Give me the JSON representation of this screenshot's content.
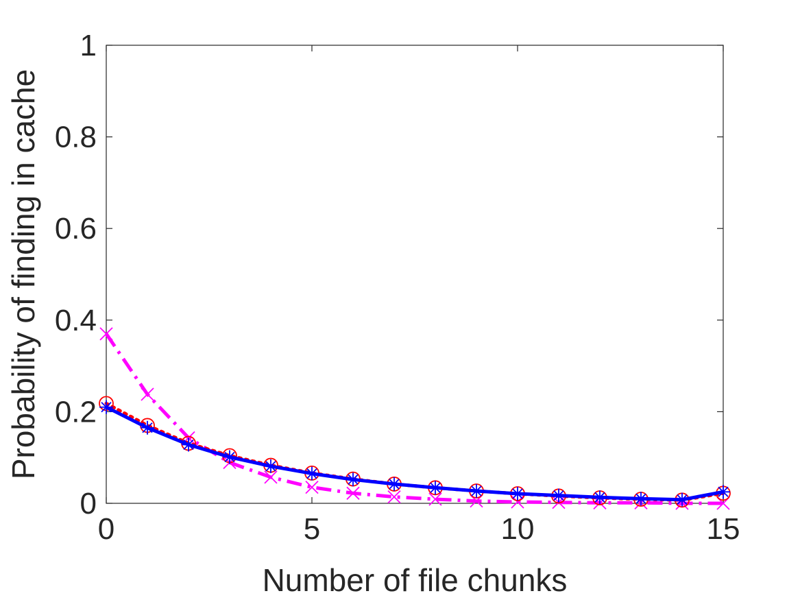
{
  "chart_data": {
    "type": "line",
    "title": "",
    "xlabel": "Number of file chunks",
    "ylabel": "Probability of finding in cache",
    "xlim": [
      0,
      15
    ],
    "ylim": [
      0,
      1
    ],
    "x_ticks": [
      "0",
      "5",
      "10",
      "15"
    ],
    "y_ticks": [
      "0",
      "0.2",
      "0.4",
      "0.6",
      "0.8",
      "1"
    ],
    "x_tick_values": [
      0,
      5,
      10,
      15
    ],
    "y_tick_values": [
      0,
      0.2,
      0.4,
      0.6,
      0.8,
      1
    ],
    "grid": false,
    "legend": "none",
    "x": [
      0,
      1,
      2,
      3,
      4,
      5,
      6,
      7,
      8,
      9,
      10,
      11,
      12,
      13,
      14,
      15
    ],
    "series": [
      {
        "color": "#0000ff",
        "line_style": "solid",
        "marker": "asterisk",
        "values": [
          0.21,
          0.165,
          0.128,
          0.101,
          0.081,
          0.065,
          0.052,
          0.042,
          0.034,
          0.027,
          0.021,
          0.017,
          0.013,
          0.01,
          0.008,
          0.025
        ]
      },
      {
        "color": "#ff0000",
        "line_style": "dotted",
        "marker": "circle",
        "values": [
          0.218,
          0.17,
          0.131,
          0.104,
          0.083,
          0.066,
          0.053,
          0.042,
          0.034,
          0.027,
          0.021,
          0.016,
          0.012,
          0.009,
          0.007,
          0.022
        ]
      },
      {
        "color": "#ff00ff",
        "line_style": "dashdot",
        "marker": "x",
        "values": [
          0.37,
          0.238,
          0.143,
          0.089,
          0.057,
          0.035,
          0.022,
          0.014,
          0.009,
          0.005,
          0.003,
          0.002,
          0.001,
          0.001,
          0.0,
          0.0
        ]
      }
    ]
  }
}
